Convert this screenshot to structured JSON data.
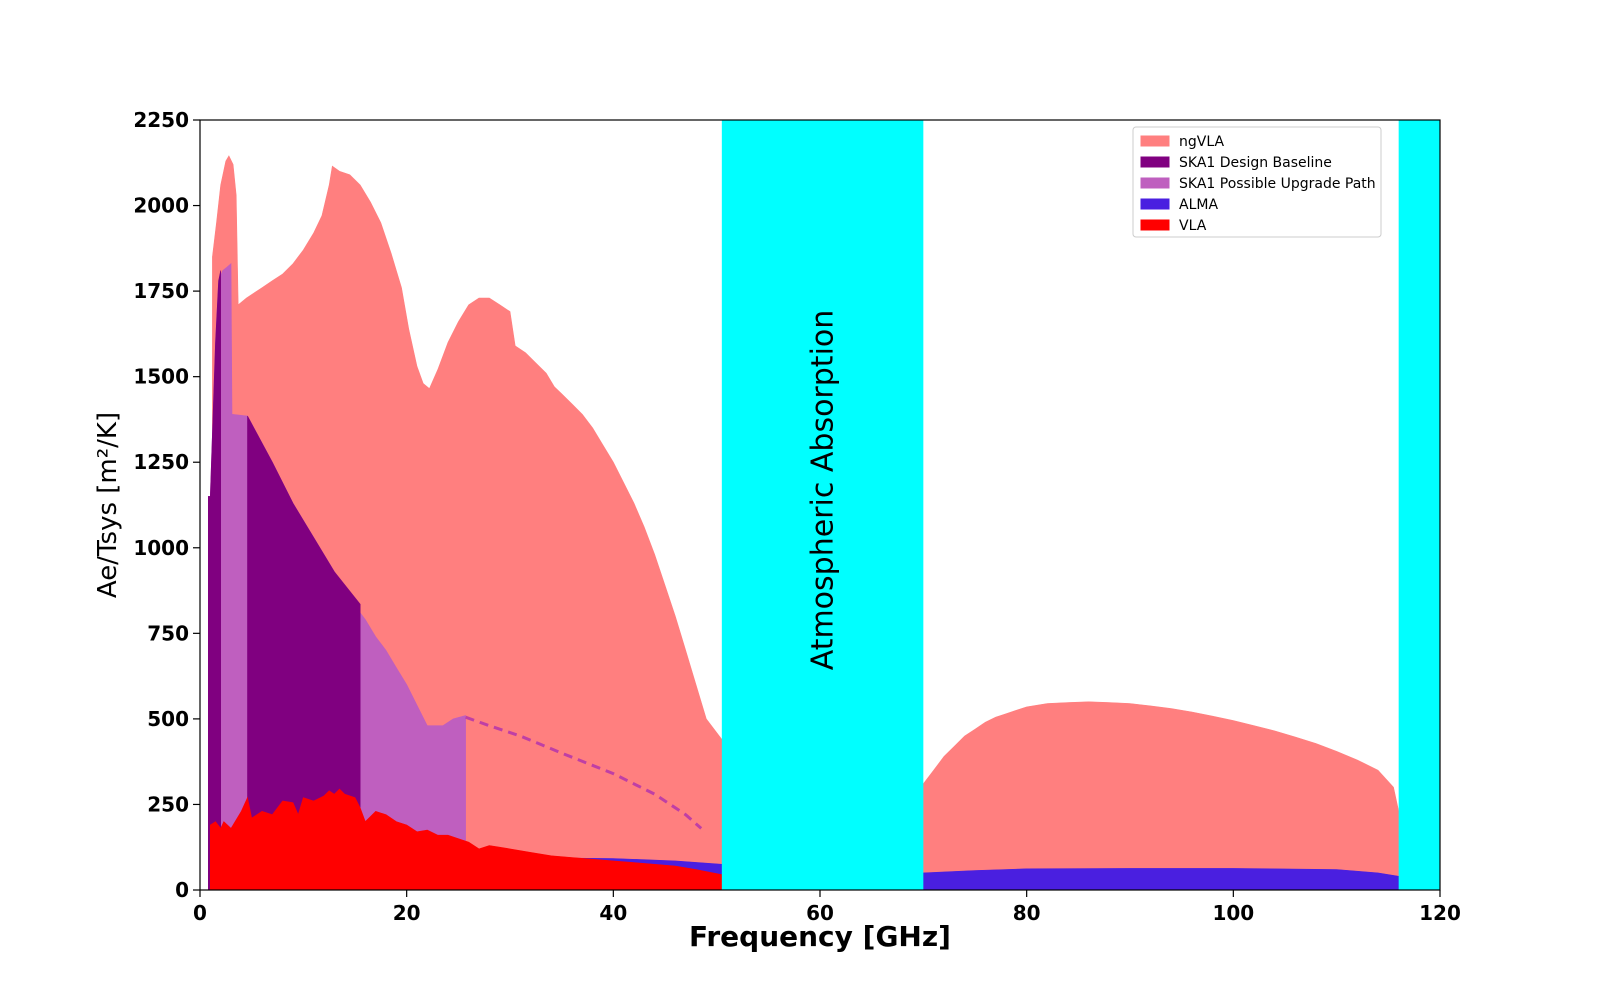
{
  "chart_data": {
    "type": "area",
    "xlabel": "Frequency [GHz]",
    "ylabel": "Ae/Tsys  [m²/K]",
    "xlim": [
      0,
      120
    ],
    "ylim": [
      0,
      2250
    ],
    "x_ticks": [
      0,
      20,
      40,
      60,
      80,
      100,
      120
    ],
    "y_ticks": [
      0,
      250,
      500,
      750,
      1000,
      1250,
      1500,
      1750,
      2000,
      2250
    ],
    "x_tick_labels": [
      "0",
      "20",
      "40",
      "60",
      "80",
      "100",
      "120"
    ],
    "y_tick_labels": [
      "0",
      "250",
      "500",
      "750",
      "1000",
      "1250",
      "1500",
      "1750",
      "2000",
      "2250"
    ],
    "grid": false,
    "legend_position": "top-right",
    "bands": [
      {
        "x0": 50.5,
        "x1": 70,
        "color": "#00ffff",
        "label": "Atmospheric Absorption"
      },
      {
        "x0": 116,
        "x1": 120,
        "color": "#00ffff",
        "label": ""
      }
    ],
    "series": [
      {
        "name": "ngVLA",
        "color": "#ff7f7f",
        "segments": [
          [
            [
              1.2,
              0
            ],
            [
              1.2,
              1850
            ],
            [
              1.6,
              1950
            ],
            [
              2,
              2060
            ],
            [
              2.5,
              2130
            ],
            [
              2.8,
              2145
            ],
            [
              3.2,
              2120
            ],
            [
              3.5,
              2030
            ],
            [
              3.7,
              1710
            ],
            [
              4.5,
              1730
            ],
            [
              6,
              1760
            ],
            [
              7,
              1780
            ],
            [
              8,
              1800
            ],
            [
              9,
              1830
            ],
            [
              10,
              1870
            ],
            [
              11,
              1920
            ],
            [
              11.8,
              1970
            ],
            [
              12.5,
              2060
            ],
            [
              12.8,
              2115
            ],
            [
              13.5,
              2100
            ],
            [
              14.5,
              2090
            ],
            [
              15.5,
              2060
            ],
            [
              16.5,
              2010
            ],
            [
              17.5,
              1950
            ],
            [
              18.5,
              1860
            ],
            [
              19.5,
              1760
            ],
            [
              20.2,
              1640
            ],
            [
              21,
              1530
            ],
            [
              21.6,
              1480
            ],
            [
              22.2,
              1465
            ],
            [
              23,
              1520
            ],
            [
              24,
              1600
            ],
            [
              25,
              1660
            ],
            [
              26,
              1710
            ],
            [
              27,
              1730
            ],
            [
              28,
              1730
            ],
            [
              29,
              1710
            ],
            [
              30,
              1690
            ],
            [
              30.5,
              1590
            ],
            [
              31.5,
              1570
            ],
            [
              32.5,
              1540
            ],
            [
              33.5,
              1510
            ],
            [
              34.3,
              1470
            ],
            [
              35,
              1450
            ],
            [
              36,
              1420
            ],
            [
              37,
              1390
            ],
            [
              38,
              1350
            ],
            [
              39,
              1300
            ],
            [
              40,
              1250
            ],
            [
              41,
              1190
            ],
            [
              42,
              1130
            ],
            [
              43,
              1060
            ],
            [
              44,
              980
            ],
            [
              45,
              890
            ],
            [
              46,
              800
            ],
            [
              47,
              700
            ],
            [
              48,
              600
            ],
            [
              49,
              500
            ],
            [
              50.5,
              440
            ],
            [
              50.5,
              0
            ]
          ],
          [
            [
              70,
              0
            ],
            [
              70,
              310
            ],
            [
              71,
              350
            ],
            [
              72,
              390
            ],
            [
              73,
              420
            ],
            [
              74,
              450
            ],
            [
              75,
              470
            ],
            [
              76,
              490
            ],
            [
              77,
              505
            ],
            [
              78,
              515
            ],
            [
              79,
              525
            ],
            [
              80,
              535
            ],
            [
              82,
              545
            ],
            [
              84,
              548
            ],
            [
              86,
              550
            ],
            [
              88,
              548
            ],
            [
              90,
              545
            ],
            [
              92,
              538
            ],
            [
              94,
              530
            ],
            [
              96,
              520
            ],
            [
              98,
              508
            ],
            [
              100,
              495
            ],
            [
              102,
              480
            ],
            [
              104,
              465
            ],
            [
              106,
              447
            ],
            [
              108,
              428
            ],
            [
              110,
              405
            ],
            [
              112,
              380
            ],
            [
              114,
              350
            ],
            [
              115.5,
              300
            ],
            [
              116,
              230
            ],
            [
              116,
              0
            ]
          ]
        ]
      },
      {
        "name": "SKA1 Possible Upgrade Path",
        "color": "#bf5fbf",
        "segments": [
          [
            [
              0.8,
              0
            ],
            [
              0.8,
              1150
            ],
            [
              1,
              1150
            ],
            [
              1.5,
              1600
            ],
            [
              1.8,
              1780
            ],
            [
              2.2,
              1810
            ],
            [
              2.6,
              1820
            ],
            [
              3,
              1830
            ],
            [
              3.1,
              1390
            ],
            [
              4.6,
              1385
            ],
            [
              7,
              1250
            ],
            [
              9,
              1130
            ],
            [
              11,
              1030
            ],
            [
              13,
              930
            ],
            [
              15,
              830
            ],
            [
              16,
              790
            ],
            [
              17,
              740
            ],
            [
              18,
              700
            ],
            [
              19,
              650
            ],
            [
              20,
              600
            ],
            [
              21,
              540
            ],
            [
              22,
              480
            ],
            [
              23.5,
              480
            ],
            [
              24.5,
              500
            ],
            [
              25.7,
              510
            ],
            [
              25.7,
              0
            ]
          ]
        ]
      },
      {
        "name": "SKA1 Design Baseline",
        "color": "#800080",
        "segments": [
          [
            [
              0.8,
              0
            ],
            [
              0.8,
              1150
            ],
            [
              1,
              1150
            ],
            [
              1.5,
              1600
            ],
            [
              1.8,
              1780
            ],
            [
              2,
              1810
            ],
            [
              2,
              0
            ]
          ],
          [
            [
              4.6,
              0
            ],
            [
              4.6,
              1385
            ],
            [
              7,
              1250
            ],
            [
              9,
              1130
            ],
            [
              11,
              1030
            ],
            [
              13,
              930
            ],
            [
              15.5,
              835
            ],
            [
              15.5,
              0
            ]
          ]
        ]
      },
      {
        "name": "ALMA",
        "color": "#4a1fe0",
        "segments": [
          [
            [
              30,
              0
            ],
            [
              30,
              95
            ],
            [
              40,
              92
            ],
            [
              46,
              85
            ],
            [
              50.5,
              75
            ],
            [
              50.5,
              0
            ]
          ],
          [
            [
              70,
              0
            ],
            [
              70,
              50
            ],
            [
              75,
              57
            ],
            [
              80,
              62
            ],
            [
              90,
              63
            ],
            [
              100,
              63
            ],
            [
              110,
              60
            ],
            [
              114,
              50
            ],
            [
              116,
              40
            ],
            [
              116,
              0
            ]
          ]
        ]
      },
      {
        "name": "VLA",
        "color": "#ff0000",
        "segments": [
          [
            [
              1,
              0
            ],
            [
              1,
              190
            ],
            [
              1.5,
              200
            ],
            [
              2,
              180
            ],
            [
              2.3,
              200
            ],
            [
              3,
              180
            ],
            [
              4,
              230
            ],
            [
              4.6,
              270
            ],
            [
              5,
              210
            ],
            [
              6,
              230
            ],
            [
              7,
              220
            ],
            [
              8,
              260
            ],
            [
              9,
              255
            ],
            [
              9.5,
              220
            ],
            [
              10,
              270
            ],
            [
              11,
              260
            ],
            [
              12,
              275
            ],
            [
              12.5,
              290
            ],
            [
              13,
              280
            ],
            [
              13.5,
              295
            ],
            [
              14,
              280
            ],
            [
              15,
              270
            ],
            [
              15.5,
              240
            ],
            [
              16,
              200
            ],
            [
              17,
              230
            ],
            [
              18,
              220
            ],
            [
              19,
              200
            ],
            [
              20,
              190
            ],
            [
              21,
              170
            ],
            [
              22,
              175
            ],
            [
              23,
              160
            ],
            [
              24,
              160
            ],
            [
              25,
              150
            ],
            [
              26,
              140
            ],
            [
              27,
              120
            ],
            [
              28,
              130
            ],
            [
              29,
              125
            ],
            [
              30,
              120
            ],
            [
              32,
              110
            ],
            [
              34,
              100
            ],
            [
              36,
              95
            ],
            [
              38,
              90
            ],
            [
              40,
              85
            ],
            [
              42,
              80
            ],
            [
              44,
              75
            ],
            [
              46,
              70
            ],
            [
              48,
              60
            ],
            [
              50.5,
              45
            ],
            [
              50.5,
              0
            ]
          ]
        ]
      }
    ],
    "upgrade_dashed_line": {
      "color": "#bf3fa5",
      "points": [
        [
          25.7,
          505
        ],
        [
          28,
          480
        ],
        [
          31,
          450
        ],
        [
          35,
          400
        ],
        [
          40,
          340
        ],
        [
          44,
          280
        ],
        [
          47,
          220
        ],
        [
          48.5,
          180
        ]
      ]
    }
  }
}
